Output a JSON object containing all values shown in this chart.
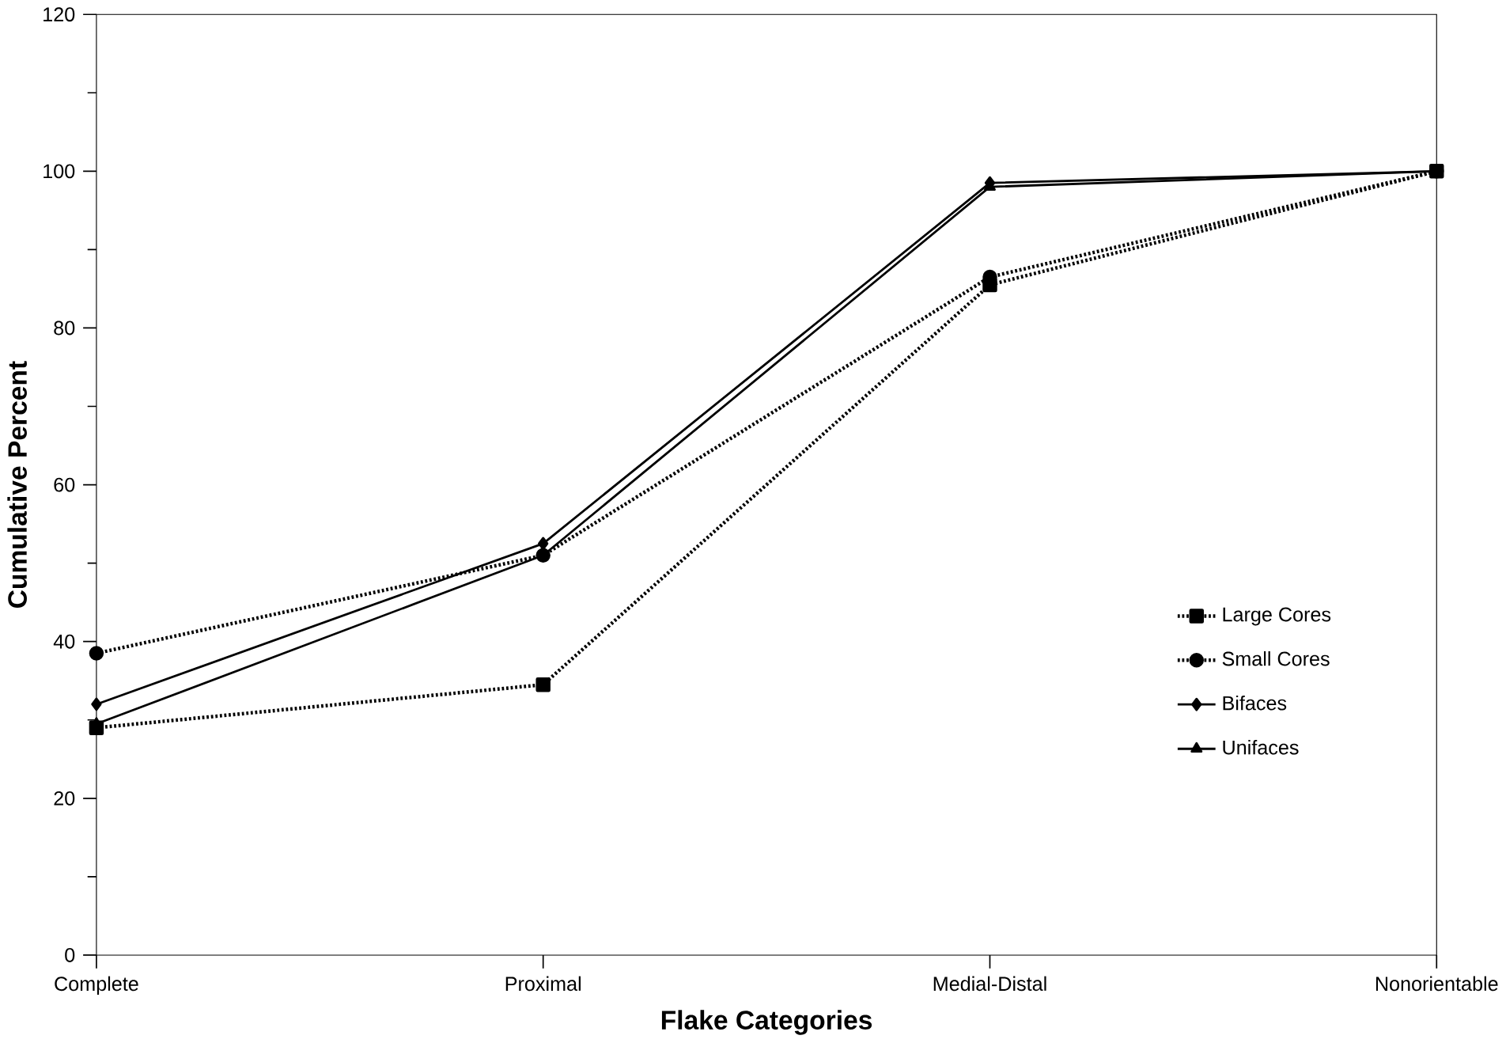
{
  "chart_data": {
    "type": "line",
    "xlabel": "Flake Categories",
    "ylabel": "Cumulative Percent",
    "categories": [
      "Complete",
      "Proximal",
      "Medial-Distal",
      "Nonorientable"
    ],
    "ylim": [
      0,
      120
    ],
    "yticks": [
      0,
      20,
      40,
      60,
      80,
      100,
      120
    ],
    "grid": false,
    "legend": "bottom right",
    "series": [
      {
        "name": "Large Cores",
        "color": "#000000",
        "values": [
          29,
          34.5,
          85.5,
          100
        ],
        "marker": "square",
        "line_style": "dotted"
      },
      {
        "name": "Small Cores",
        "color": "#000000",
        "values": [
          38.5,
          51,
          86.5,
          100
        ],
        "marker": "circle",
        "line_style": "dotted"
      },
      {
        "name": "Bifaces",
        "color": "#000000",
        "values": [
          32,
          52.5,
          98.5,
          100
        ],
        "marker": "diamond",
        "line_style": "solid"
      },
      {
        "name": "Unifaces",
        "color": "#000000",
        "values": [
          29.5,
          51,
          98,
          100
        ],
        "marker": "triangle",
        "line_style": "solid"
      }
    ]
  }
}
